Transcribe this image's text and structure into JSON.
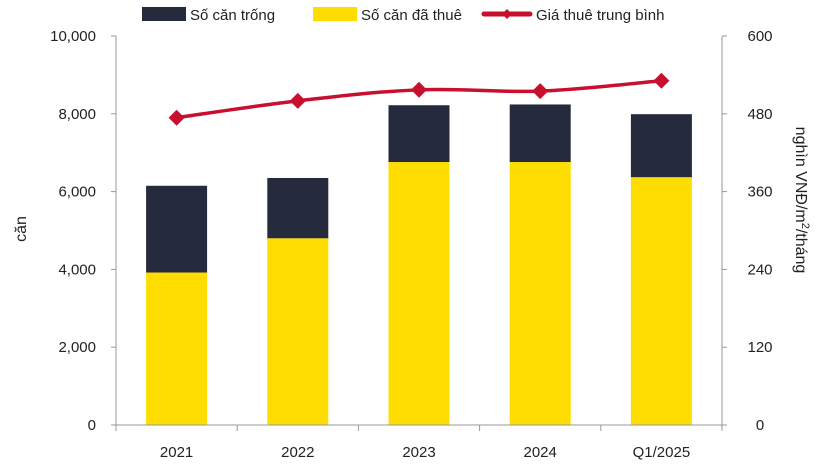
{
  "chart_data": {
    "type": "bar",
    "stacked": true,
    "categories": [
      "2021",
      "2022",
      "2023",
      "2024",
      "Q1/2025"
    ],
    "series": [
      {
        "name": "Số căn đã thuê",
        "type": "bar",
        "axis": "left",
        "color": "#FFDD00",
        "values": [
          3920,
          4800,
          6760,
          6760,
          6370
        ]
      },
      {
        "name": "Số căn trống",
        "type": "bar",
        "axis": "left",
        "color": "#262A3D",
        "values": [
          2230,
          1550,
          1460,
          1480,
          1620
        ]
      },
      {
        "name": "Giá thuê trung bình",
        "type": "line",
        "axis": "right",
        "color": "#C8102E",
        "values": [
          474,
          500,
          517,
          515,
          531
        ]
      }
    ],
    "legend_order": [
      "Số căn trống",
      "Số căn đã thuê",
      "Giá thuê trung bình"
    ],
    "legend_position": "top",
    "ylabel": "căn",
    "ylabel_right_main": "nghìn VNĐ/m",
    "ylabel_right_sup": "2",
    "ylabel_right_tail": "/tháng",
    "ylim": [
      0,
      10000
    ],
    "y2lim": [
      0,
      600
    ],
    "yticks": [
      "0",
      "2,000",
      "4,000",
      "6,000",
      "8,000",
      "10,000"
    ],
    "y2ticks": [
      "0",
      "120",
      "240",
      "360",
      "480",
      "600"
    ],
    "grid": false
  }
}
